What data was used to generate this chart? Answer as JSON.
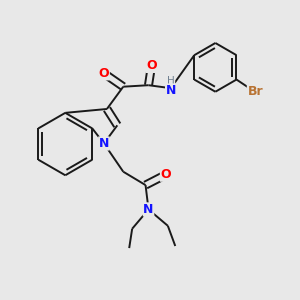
{
  "bg_color": "#e8e8e8",
  "bond_color": "#1a1a1a",
  "bond_width": 1.4,
  "dbo": 0.012,
  "atom_colors": {
    "N": "#1414ff",
    "O": "#ff0000",
    "Br": "#b87333",
    "H": "#708090",
    "C": "#1a1a1a"
  },
  "fs": 8.5
}
